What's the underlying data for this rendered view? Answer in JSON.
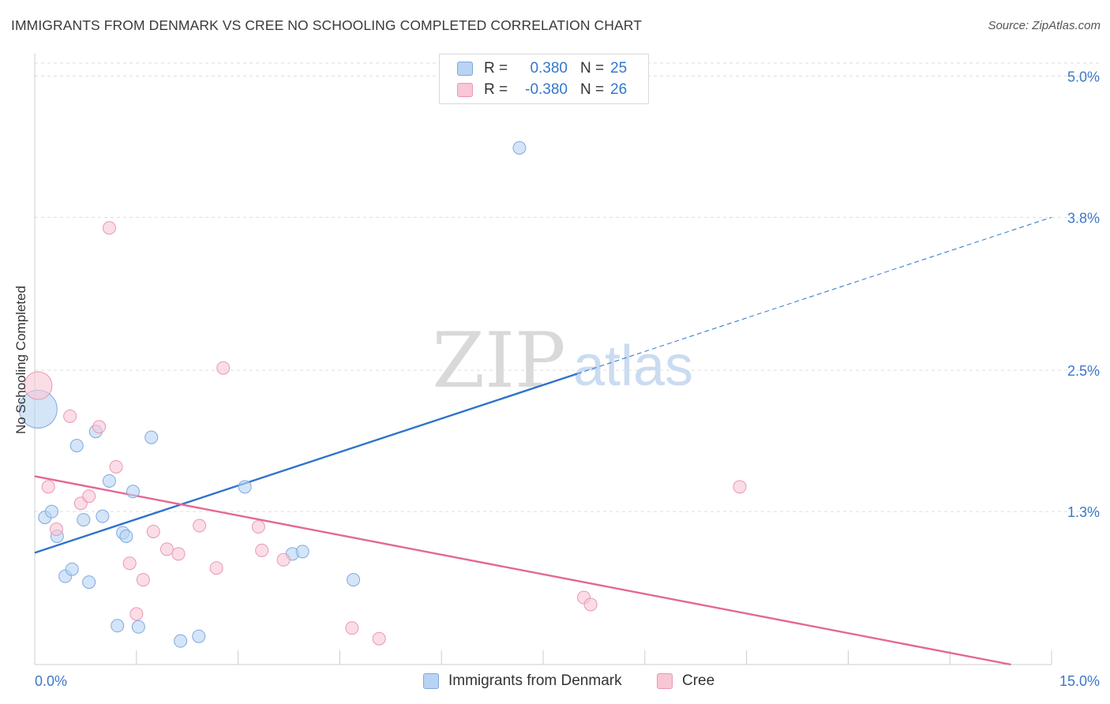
{
  "header": {
    "title": "IMMIGRANTS FROM DENMARK VS CREE NO SCHOOLING COMPLETED CORRELATION CHART",
    "source": "Source: ZipAtlas.com"
  },
  "watermark": {
    "zip": "ZIP",
    "atlas": "atlas"
  },
  "legend": {
    "rows": [
      {
        "r_label": "R =",
        "r_value": "0.380",
        "n_label": "N =",
        "n_value": "25"
      },
      {
        "r_label": "R =",
        "r_value": "-0.380",
        "n_label": "N =",
        "n_value": "26"
      }
    ]
  },
  "bottom_legend": {
    "denmark": "Immigrants from Denmark",
    "cree": "Cree"
  },
  "colors": {
    "denmark_fill": "#b8d3f3",
    "denmark_stroke": "#7fa9de",
    "denmark_line": "#2f73cc",
    "cree_fill": "#f8c6d5",
    "cree_stroke": "#eb97b3",
    "cree_line": "#e36894",
    "tick_label": "#3b78c8",
    "grid": "#dddddd"
  },
  "chart_data": {
    "type": "scatter",
    "title": "IMMIGRANTS FROM DENMARK VS CREE NO SCHOOLING COMPLETED CORRELATION CHART",
    "xlabel": "",
    "ylabel": "No Schooling Completed",
    "xlim": [
      0,
      15
    ],
    "ylim": [
      0,
      5.15
    ],
    "x_tick_labels": [
      {
        "value": 0,
        "label": "0.0%"
      },
      {
        "value": 15,
        "label": "15.0%"
      }
    ],
    "y_tick_labels": [
      {
        "value": 1.3,
        "label": "1.3%"
      },
      {
        "value": 2.5,
        "label": "2.5%"
      },
      {
        "value": 3.8,
        "label": "3.8%"
      },
      {
        "value": 5.0,
        "label": "5.0%"
      }
    ],
    "y_grid": [
      1.3,
      2.5,
      3.8,
      5.0
    ],
    "grid": true,
    "legend_position": "top-center",
    "series": [
      {
        "name": "Immigrants from Denmark",
        "color": "#b8d3f3",
        "points": [
          {
            "x": 0.05,
            "y": 2.17,
            "size": 3.0
          },
          {
            "x": 0.15,
            "y": 1.25
          },
          {
            "x": 0.25,
            "y": 1.3
          },
          {
            "x": 0.33,
            "y": 1.09
          },
          {
            "x": 0.45,
            "y": 0.75
          },
          {
            "x": 0.55,
            "y": 0.81
          },
          {
            "x": 0.62,
            "y": 1.86
          },
          {
            "x": 0.72,
            "y": 1.23
          },
          {
            "x": 0.8,
            "y": 0.7
          },
          {
            "x": 0.9,
            "y": 1.98
          },
          {
            "x": 1.0,
            "y": 1.26
          },
          {
            "x": 1.1,
            "y": 1.56
          },
          {
            "x": 1.22,
            "y": 0.33
          },
          {
            "x": 1.3,
            "y": 1.12
          },
          {
            "x": 1.35,
            "y": 1.09
          },
          {
            "x": 1.45,
            "y": 1.47
          },
          {
            "x": 1.53,
            "y": 0.32
          },
          {
            "x": 1.72,
            "y": 1.93
          },
          {
            "x": 2.15,
            "y": 0.2
          },
          {
            "x": 2.42,
            "y": 0.24
          },
          {
            "x": 3.1,
            "y": 1.51
          },
          {
            "x": 3.8,
            "y": 0.94
          },
          {
            "x": 3.95,
            "y": 0.96
          },
          {
            "x": 4.7,
            "y": 0.72
          },
          {
            "x": 7.15,
            "y": 4.39
          }
        ],
        "trend": {
          "x": [
            0,
            8.0
          ],
          "y": [
            0.95,
            2.47
          ]
        },
        "trend_extension": {
          "x": [
            8.0,
            15.0
          ],
          "y": [
            2.47,
            3.8
          ]
        }
      },
      {
        "name": "Cree",
        "color": "#f8c6d5",
        "points": [
          {
            "x": 0.05,
            "y": 2.37,
            "size": 2.2
          },
          {
            "x": 0.2,
            "y": 1.51
          },
          {
            "x": 0.32,
            "y": 1.15
          },
          {
            "x": 0.52,
            "y": 2.11
          },
          {
            "x": 0.68,
            "y": 1.37
          },
          {
            "x": 0.8,
            "y": 1.43
          },
          {
            "x": 0.95,
            "y": 2.02
          },
          {
            "x": 1.1,
            "y": 3.71
          },
          {
            "x": 1.2,
            "y": 1.68
          },
          {
            "x": 1.4,
            "y": 0.86
          },
          {
            "x": 1.5,
            "y": 0.43
          },
          {
            "x": 1.6,
            "y": 0.72
          },
          {
            "x": 1.75,
            "y": 1.13
          },
          {
            "x": 1.95,
            "y": 0.98
          },
          {
            "x": 2.12,
            "y": 0.94
          },
          {
            "x": 2.43,
            "y": 1.18
          },
          {
            "x": 2.68,
            "y": 0.82
          },
          {
            "x": 2.78,
            "y": 2.52
          },
          {
            "x": 3.3,
            "y": 1.17
          },
          {
            "x": 3.35,
            "y": 0.97
          },
          {
            "x": 3.67,
            "y": 0.89
          },
          {
            "x": 4.68,
            "y": 0.31
          },
          {
            "x": 5.08,
            "y": 0.22
          },
          {
            "x": 8.1,
            "y": 0.57
          },
          {
            "x": 8.2,
            "y": 0.51
          },
          {
            "x": 10.4,
            "y": 1.51
          }
        ],
        "trend": {
          "x": [
            0,
            14.4
          ],
          "y": [
            1.6,
            0.0
          ]
        }
      }
    ]
  }
}
